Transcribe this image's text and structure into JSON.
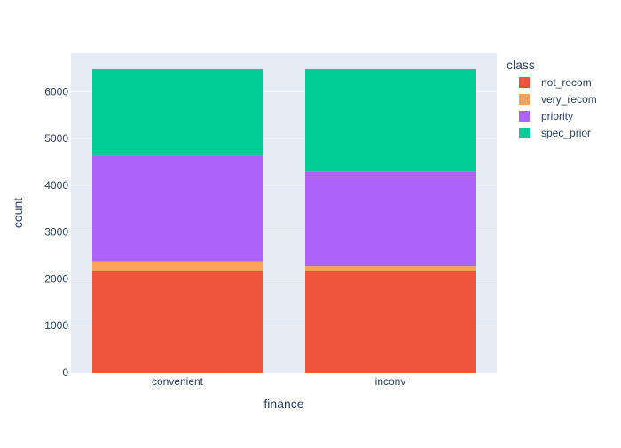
{
  "chart_data": {
    "type": "bar",
    "stacked": true,
    "xlabel": "finance",
    "ylabel": "count",
    "categories": [
      "convenient",
      "inconv"
    ],
    "ylim": [
      0,
      6820
    ],
    "yticks": [
      0,
      1000,
      2000,
      3000,
      4000,
      5000,
      6000
    ],
    "grid": true,
    "legend": {
      "title": "class",
      "position": "top-right"
    },
    "series": [
      {
        "name": "not_recom",
        "color": "#EF553B",
        "values": [
          2160,
          2160
        ]
      },
      {
        "name": "very_recom",
        "color": "#FFA15A",
        "values": [
          218,
          110
        ]
      },
      {
        "name": "priority",
        "color": "#AB63FA",
        "values": [
          2250,
          2016
        ]
      },
      {
        "name": "spec_prior",
        "color": "#00CC96",
        "values": [
          1852,
          2194
        ]
      }
    ]
  }
}
